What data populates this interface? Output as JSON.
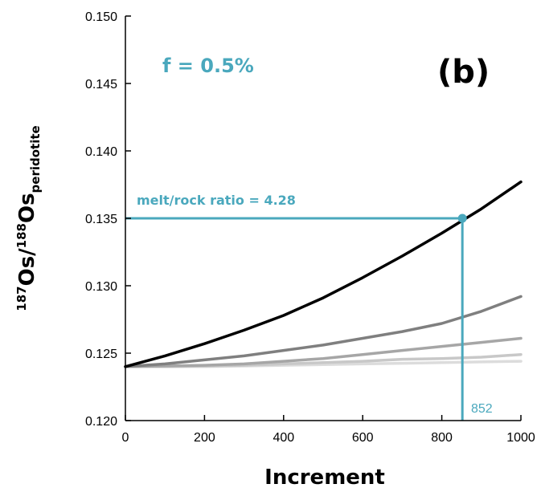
{
  "chart_data": {
    "type": "line",
    "panel_label": "(b)",
    "annotation_f": "f = 0.5%",
    "annotation_ratio": "melt/rock ratio = 4.28",
    "annotation_x": "852",
    "marker_x": 852,
    "marker_y": 0.135,
    "xlabel": "Increment",
    "ylabel_parts": [
      "187",
      "Os/",
      "188",
      "Os",
      "peridotite"
    ],
    "xlim": [
      0,
      1000
    ],
    "ylim": [
      0.12,
      0.15
    ],
    "x_ticks": [
      0,
      200,
      400,
      600,
      800,
      1000
    ],
    "y_ticks": [
      0.12,
      0.125,
      0.13,
      0.135,
      0.14,
      0.145,
      0.15
    ],
    "y_tick_labels": [
      "0.120",
      "0.125",
      "0.130",
      "0.135",
      "0.140",
      "0.145",
      "0.150"
    ],
    "accent_color": "#4aa8bd",
    "x": [
      0,
      100,
      200,
      300,
      400,
      500,
      600,
      700,
      800,
      900,
      1000
    ],
    "series": [
      {
        "color": "#000000",
        "values": [
          0.124,
          0.1248,
          0.1257,
          0.1267,
          0.1278,
          0.1291,
          0.1306,
          0.1322,
          0.1339,
          0.1357,
          0.1377
        ]
      },
      {
        "color": "#7f7f7f",
        "values": [
          0.124,
          0.1242,
          0.1245,
          0.1248,
          0.1252,
          0.1256,
          0.1261,
          0.1266,
          0.1272,
          0.1281,
          0.1292
        ]
      },
      {
        "color": "#a6a6a6",
        "values": [
          0.124,
          0.12405,
          0.1241,
          0.1242,
          0.1244,
          0.1246,
          0.1249,
          0.1252,
          0.1255,
          0.1258,
          0.1261
        ]
      },
      {
        "color": "#c8c8c8",
        "values": [
          0.124,
          0.124,
          0.12405,
          0.1241,
          0.1242,
          0.1243,
          0.1244,
          0.12455,
          0.1246,
          0.1247,
          0.1249
        ]
      },
      {
        "color": "#dcdcdc",
        "values": [
          0.124,
          0.124,
          0.124,
          0.12405,
          0.1241,
          0.12415,
          0.1242,
          0.12425,
          0.1243,
          0.12435,
          0.1244
        ]
      }
    ]
  }
}
